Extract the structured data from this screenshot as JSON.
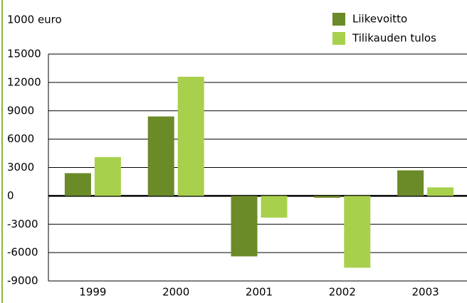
{
  "chart_data": {
    "type": "bar",
    "y_axis_label": "1000 euro",
    "categories": [
      "1999",
      "2000",
      "2001",
      "2002",
      "2003"
    ],
    "series": [
      {
        "name": "Liikevoitto",
        "color": "#6b8a28",
        "values": [
          2400,
          8400,
          -6400,
          -200,
          2700
        ]
      },
      {
        "name": "Tilikauden tulos",
        "color": "#a8d04c",
        "values": [
          4100,
          12600,
          -2300,
          -7600,
          900
        ]
      }
    ],
    "ylim": [
      -9000,
      15000
    ],
    "yticks": [
      -9000,
      -6000,
      -3000,
      0,
      3000,
      6000,
      9000,
      12000,
      15000
    ],
    "grid": true,
    "legend": "top-right"
  }
}
